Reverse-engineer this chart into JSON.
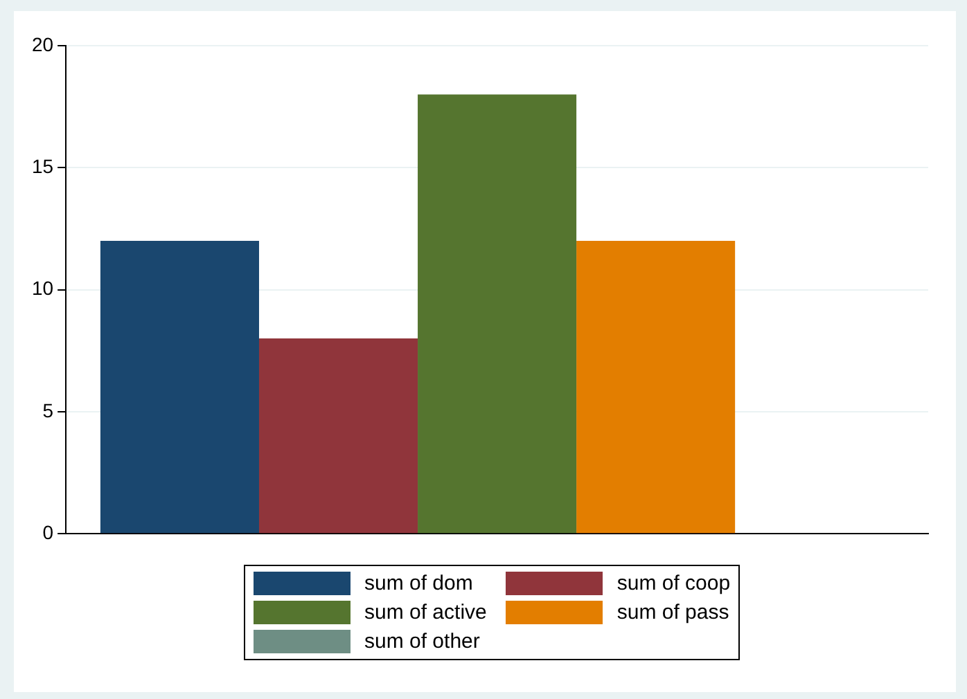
{
  "chart_data": {
    "type": "bar",
    "categories": [
      null
    ],
    "series": [
      {
        "name": "sum of dom",
        "color": "#1a476f",
        "values": [
          12
        ]
      },
      {
        "name": "sum of coop",
        "color": "#90353b",
        "values": [
          8
        ]
      },
      {
        "name": "sum of active",
        "color": "#55752f",
        "values": [
          18
        ]
      },
      {
        "name": "sum of pass",
        "color": "#e37e00",
        "values": [
          12
        ]
      },
      {
        "name": "sum of other",
        "color": "#6e8e84",
        "values": [
          0
        ]
      }
    ],
    "ylim": [
      0,
      20
    ],
    "yticks": [
      0,
      5,
      10,
      15,
      20
    ],
    "grid": "y",
    "legend": "bottom"
  }
}
